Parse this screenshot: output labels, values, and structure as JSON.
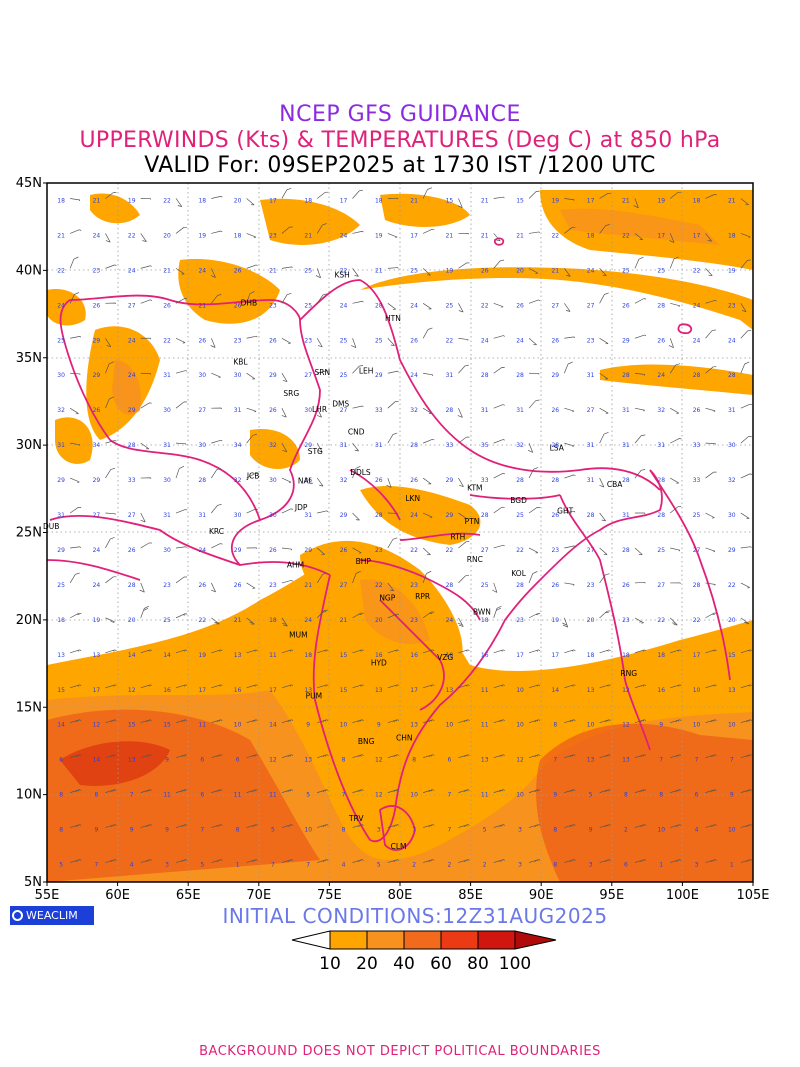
{
  "header": {
    "line1": "NCEP GFS GUIDANCE",
    "line2": "UPPERWINDS (Kts) & TEMPERATURES (Deg C) at 850 hPa",
    "line3": "VALID For: 09SEP2025 at 1730 IST /1200 UTC"
  },
  "map": {
    "lon_range": [
      55,
      105
    ],
    "lat_range": [
      5,
      45
    ],
    "x_ticks": [
      "55E",
      "60E",
      "65E",
      "70E",
      "75E",
      "80E",
      "85E",
      "90E",
      "95E",
      "100E",
      "105E"
    ],
    "y_ticks": [
      "45N",
      "40N",
      "35N",
      "30N",
      "25N",
      "20N",
      "15N",
      "10N",
      "5N"
    ],
    "stations": [
      {
        "name": "KSH",
        "lon": 75.9,
        "lat": 39.6
      },
      {
        "name": "DHB",
        "lon": 69.3,
        "lat": 38.0
      },
      {
        "name": "HTN",
        "lon": 79.5,
        "lat": 37.1
      },
      {
        "name": "KBL",
        "lon": 68.7,
        "lat": 34.6
      },
      {
        "name": "LEH",
        "lon": 77.6,
        "lat": 34.1
      },
      {
        "name": "SRN",
        "lon": 74.5,
        "lat": 34.0
      },
      {
        "name": "SRG",
        "lon": 72.3,
        "lat": 32.8
      },
      {
        "name": "DMS",
        "lon": 75.8,
        "lat": 32.2
      },
      {
        "name": "LHR",
        "lon": 74.3,
        "lat": 31.9
      },
      {
        "name": "CND",
        "lon": 76.9,
        "lat": 30.6
      },
      {
        "name": "STG",
        "lon": 74.0,
        "lat": 29.5
      },
      {
        "name": "LSA",
        "lon": 91.1,
        "lat": 29.7
      },
      {
        "name": "JCB",
        "lon": 69.6,
        "lat": 28.1
      },
      {
        "name": "DDLS",
        "lon": 77.2,
        "lat": 28.3
      },
      {
        "name": "NAL",
        "lon": 73.3,
        "lat": 27.8
      },
      {
        "name": "KTM",
        "lon": 85.3,
        "lat": 27.4
      },
      {
        "name": "CBA",
        "lon": 95.2,
        "lat": 27.6
      },
      {
        "name": "BGD",
        "lon": 88.4,
        "lat": 26.7
      },
      {
        "name": "GHT",
        "lon": 91.7,
        "lat": 26.1
      },
      {
        "name": "JDP",
        "lon": 73.0,
        "lat": 26.3
      },
      {
        "name": "LKN",
        "lon": 80.9,
        "lat": 26.8
      },
      {
        "name": "PTN",
        "lon": 85.1,
        "lat": 25.5
      },
      {
        "name": "DUB",
        "lon": 55.3,
        "lat": 25.2
      },
      {
        "name": "KRC",
        "lon": 67.0,
        "lat": 24.9
      },
      {
        "name": "RTH",
        "lon": 84.1,
        "lat": 24.6
      },
      {
        "name": "BHP",
        "lon": 77.4,
        "lat": 23.2
      },
      {
        "name": "AHM",
        "lon": 72.6,
        "lat": 23.0
      },
      {
        "name": "RNC",
        "lon": 85.3,
        "lat": 23.3
      },
      {
        "name": "KOL",
        "lon": 88.4,
        "lat": 22.5
      },
      {
        "name": "NGP",
        "lon": 79.1,
        "lat": 21.1
      },
      {
        "name": "RPR",
        "lon": 81.6,
        "lat": 21.2
      },
      {
        "name": "BWN",
        "lon": 85.8,
        "lat": 20.3
      },
      {
        "name": "MUM",
        "lon": 72.8,
        "lat": 19.0
      },
      {
        "name": "HYD",
        "lon": 78.5,
        "lat": 17.4
      },
      {
        "name": "VZG",
        "lon": 83.2,
        "lat": 17.7
      },
      {
        "name": "RNG",
        "lon": 96.2,
        "lat": 16.8
      },
      {
        "name": "PUM",
        "lon": 73.9,
        "lat": 15.5
      },
      {
        "name": "CHN",
        "lon": 80.3,
        "lat": 13.1
      },
      {
        "name": "BNG",
        "lon": 77.6,
        "lat": 12.9
      },
      {
        "name": "TRV",
        "lon": 76.9,
        "lat": 8.5
      },
      {
        "name": "CLM",
        "lon": 79.9,
        "lat": 6.9
      }
    ]
  },
  "initial_conditions": "INITIAL CONDITIONS:12Z31AUG2025",
  "colorbar": {
    "levels": [
      "10",
      "20",
      "40",
      "60",
      "80",
      "100"
    ],
    "colors": [
      "#ffa500",
      "#f7921e",
      "#f26b1d",
      "#ec3b14",
      "#d0160e",
      "#b00a0a"
    ]
  },
  "logo_text": "WEACLIM",
  "footer": "BACKGROUND DOES NOT DEPICT POLITICAL BOUNDARIES",
  "colors": {
    "shade_light": "#ffa500",
    "shade_mid": "#f7921e",
    "shade_dark": "#ee5e18",
    "boundary": "#e0217a",
    "temp_text": "#2b3fe0"
  }
}
